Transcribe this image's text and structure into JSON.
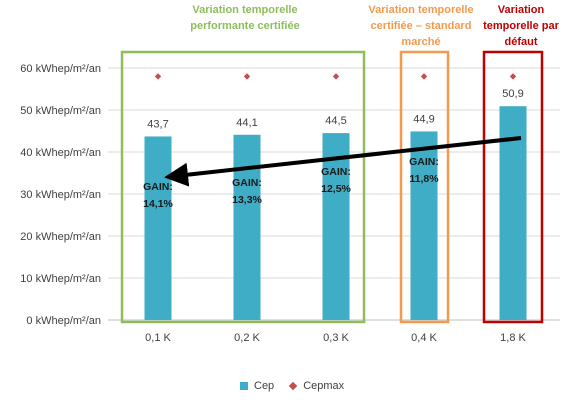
{
  "chart_data": {
    "type": "bar",
    "categories": [
      "0,1 K",
      "0,2 K",
      "0,3 K",
      "0,4 K",
      "1,8 K"
    ],
    "series": [
      {
        "name": "Cep",
        "type": "bar",
        "values": [
          43.7,
          44.1,
          44.5,
          44.9,
          50.9
        ],
        "labels": [
          "43,7",
          "44,1",
          "44,5",
          "44,9",
          "50,9"
        ],
        "color": "#3fadc6"
      },
      {
        "name": "Cepmax",
        "type": "marker",
        "values": [
          58,
          58,
          58,
          58,
          58
        ],
        "color": "#c0504d"
      }
    ],
    "ylim": [
      0,
      60
    ],
    "yticks": [
      0,
      10,
      20,
      30,
      40,
      50,
      60
    ],
    "ytick_labels": [
      "0 kWhep/m²/an",
      "10 kWhep/m²/an",
      "20 kWhep/m²/an",
      "30 kWhep/m²/an",
      "40 kWhep/m²/an",
      "50 kWhep/m²/an",
      "60 kWhep/m²/an"
    ],
    "grid": true,
    "legend_position": "bottom",
    "gain_labels": [
      "GAIN:\n14,1%",
      "GAIN:\n13,3%",
      "GAIN:\n12,5%",
      "GAIN:\n11,8%"
    ],
    "groups": [
      {
        "label": "Variation temporelle\nperformante certifiée",
        "color": "#8fbd5a"
      },
      {
        "label": "Variation temporelle\ncertifiée – standard\nmarché",
        "color": "#f39a4c"
      },
      {
        "label": "Variation\ntemporelle par\ndéfaut",
        "color": "#c00000"
      }
    ]
  }
}
